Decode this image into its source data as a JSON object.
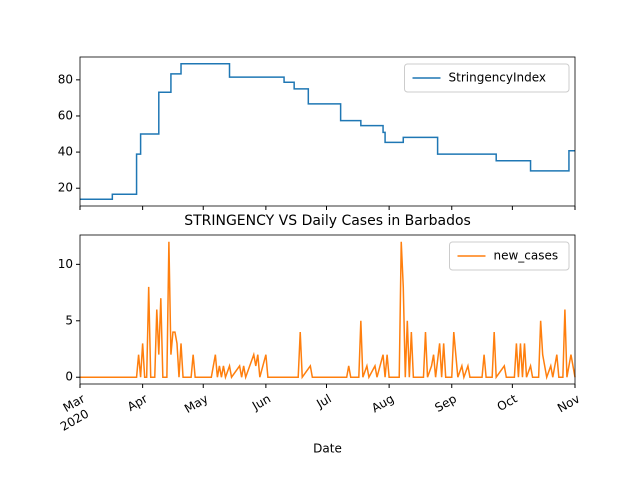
{
  "chart_data": [
    {
      "type": "line",
      "ylim": [
        10.15,
        92.65
      ],
      "yticks": [
        20,
        40,
        60,
        80
      ],
      "xlim": [
        0,
        245
      ],
      "x": [
        0,
        16,
        16,
        28,
        28,
        30,
        30,
        39,
        39,
        45,
        45,
        50,
        50,
        74,
        74,
        101,
        101,
        106,
        106,
        113,
        113,
        129,
        129,
        139,
        139,
        150,
        150,
        151,
        151,
        160,
        160,
        177,
        177,
        206,
        206,
        223,
        223,
        242,
        242,
        245
      ],
      "series": [
        {
          "name": "StringencyIndex",
          "color": "#1f77b4",
          "values": [
            13.89,
            13.89,
            16.67,
            16.67,
            38.89,
            38.89,
            50,
            50,
            73.15,
            73.15,
            83.33,
            83.33,
            88.89,
            88.89,
            81.48,
            81.48,
            78.7,
            78.7,
            75,
            75,
            66.67,
            66.67,
            57.41,
            57.41,
            54.63,
            54.63,
            50.93,
            50.93,
            45.37,
            45.37,
            48.15,
            48.15,
            38.89,
            38.89,
            35.19,
            35.19,
            29.63,
            29.63,
            40.74,
            40.74
          ]
        }
      ],
      "legend": "upper right"
    },
    {
      "type": "line",
      "title": "STRINGENCY VS Daily Cases in Barbados",
      "xlabel": "Date",
      "ylim": [
        -0.6,
        12.6
      ],
      "yticks": [
        0,
        5,
        10
      ],
      "xlim": [
        0,
        245
      ],
      "xticks": [
        {
          "value": 0,
          "label": "Mar",
          "year": "2020"
        },
        {
          "value": 31,
          "label": "Apr"
        },
        {
          "value": 61,
          "label": "May"
        },
        {
          "value": 92,
          "label": "Jun"
        },
        {
          "value": 122,
          "label": "Jul"
        },
        {
          "value": 153,
          "label": "Aug"
        },
        {
          "value": 184,
          "label": "Sep"
        },
        {
          "value": 214,
          "label": "Oct"
        },
        {
          "value": 245,
          "label": "Nov"
        }
      ],
      "x": [
        0,
        28,
        29,
        30,
        31,
        32,
        33,
        34,
        35,
        37,
        38,
        39,
        40,
        41,
        43,
        44,
        45,
        46,
        47,
        48,
        49,
        50,
        51,
        55,
        56,
        57,
        65,
        66,
        67,
        68,
        69,
        70,
        71,
        72,
        74,
        75,
        79,
        80,
        81,
        82,
        86,
        87,
        88,
        89,
        92,
        93,
        108,
        109,
        110,
        114,
        115,
        132,
        133,
        134,
        138,
        139,
        140,
        142,
        143,
        146,
        147,
        150,
        151,
        152,
        153,
        158,
        159,
        160,
        161,
        162,
        163,
        164,
        165,
        170,
        171,
        172,
        174,
        175,
        176,
        178,
        179,
        180,
        181,
        184,
        185,
        186,
        187,
        189,
        190,
        192,
        193,
        199,
        200,
        201,
        204,
        205,
        206,
        210,
        211,
        215,
        216,
        217,
        218,
        219,
        220,
        221,
        223,
        224,
        227,
        228,
        229,
        231,
        233,
        234,
        236,
        237,
        239,
        240,
        241,
        242,
        243,
        244,
        245
      ],
      "series": [
        {
          "name": "new_cases",
          "color": "#ff7f0e",
          "values": [
            0,
            0,
            2,
            0,
            3,
            0,
            0,
            8,
            0,
            0,
            6,
            2,
            7,
            0,
            0,
            12,
            2,
            4,
            4,
            3,
            0,
            3,
            0,
            0,
            2,
            0,
            0,
            1,
            2,
            0,
            1,
            0,
            1,
            0,
            1,
            0,
            1,
            0,
            1,
            0,
            2,
            1,
            2,
            0,
            2,
            0,
            0,
            4,
            0,
            1,
            0,
            0,
            1,
            0,
            0,
            5,
            0,
            1,
            0,
            1,
            0,
            2,
            0,
            2,
            0,
            0,
            12,
            8,
            0,
            5,
            0,
            4,
            0,
            0,
            4,
            0,
            1,
            2,
            0,
            3,
            0,
            3,
            0,
            0,
            4,
            2,
            0,
            1,
            0,
            1,
            0,
            0,
            2,
            0,
            0,
            4,
            0,
            1,
            0,
            0,
            3,
            0,
            3,
            0,
            3,
            0,
            1,
            0,
            0,
            5,
            2,
            0,
            1,
            0,
            2,
            0,
            0,
            6,
            0,
            1,
            2,
            1,
            0
          ]
        }
      ],
      "legend": "upper right"
    }
  ]
}
